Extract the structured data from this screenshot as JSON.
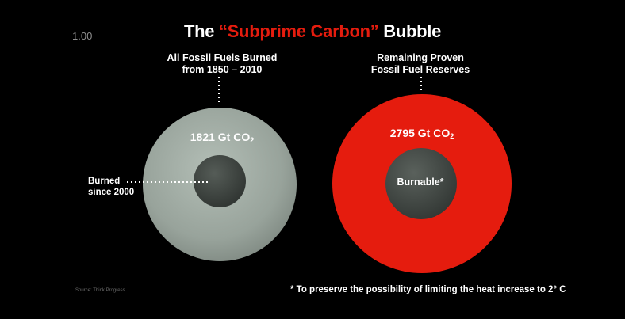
{
  "corner_number": "1.00",
  "title": {
    "prefix": "The ",
    "highlight": "“Subprime Carbon”",
    "suffix": " Bubble"
  },
  "left": {
    "caption_line1": "All Fossil Fuels Burned",
    "caption_line2": "from 1850 – 2010",
    "value_main": "1821 Gt CO",
    "value_sub": "2",
    "side_label_line1": "Burned",
    "side_label_line2": "since 2000"
  },
  "right": {
    "caption_line1": "Remaining Proven",
    "caption_line2": "Fossil Fuel Reserves",
    "value_main": "2795 Gt CO",
    "value_sub": "2",
    "inner_label": "Burnable*"
  },
  "source": "Source: Think Progress",
  "footnote": "* To preserve the possibility of limiting the heat increase to 2° C",
  "colors": {
    "background": "#000000",
    "accent_red": "#e51c0e",
    "grey_circle": "#9aa59d",
    "dark_core": "#3d433f"
  }
}
